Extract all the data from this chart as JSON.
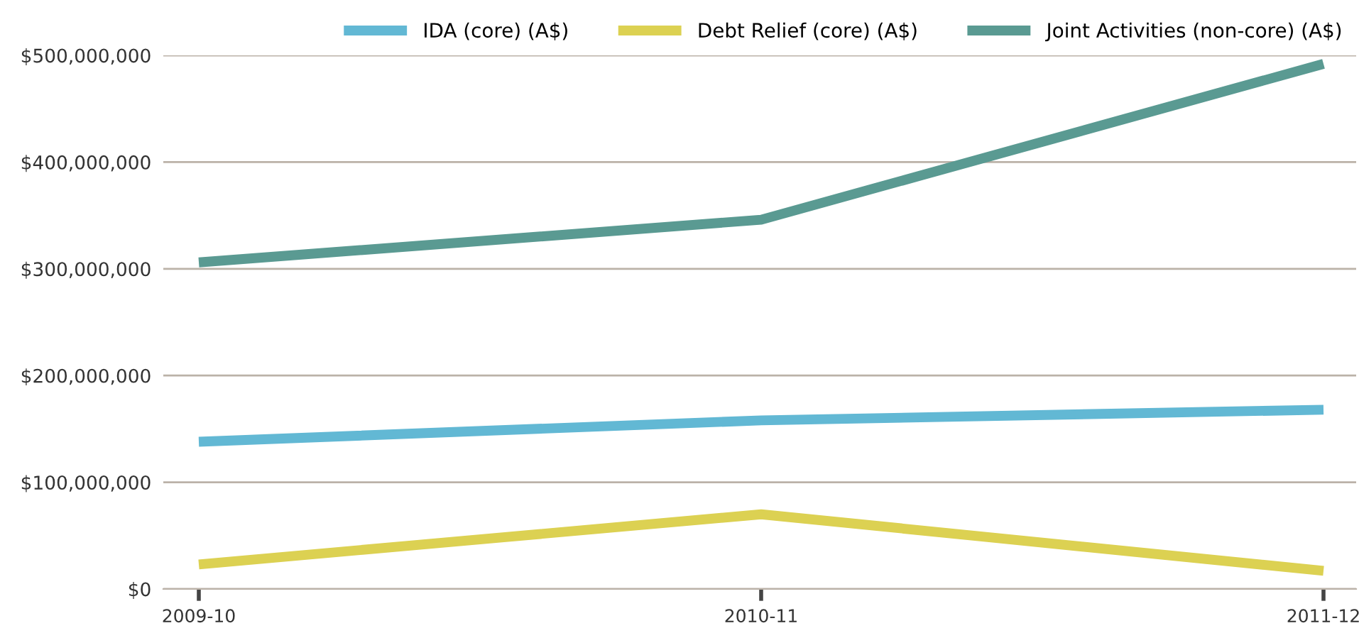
{
  "chart_data": {
    "type": "line",
    "categories": [
      "2009-10",
      "2010-11",
      "2011-12"
    ],
    "series": [
      {
        "name": "IDA (core) (A$)",
        "color": "#62b8d4",
        "values": [
          138000000,
          158000000,
          168000000
        ]
      },
      {
        "name": "Debt Relief (core) (A$)",
        "color": "#dcd152",
        "values": [
          23000000,
          70000000,
          17000000
        ]
      },
      {
        "name": "Joint Activities (non-core) (A$)",
        "color": "#5a9a92",
        "values": [
          306000000,
          346000000,
          492000000
        ]
      }
    ],
    "ylim": [
      0,
      500000000
    ],
    "yticks": [
      {
        "value": 0,
        "label": "$0"
      },
      {
        "value": 100000000,
        "label": "$100,000,000"
      },
      {
        "value": 200000000,
        "label": "$200,000,000"
      },
      {
        "value": 300000000,
        "label": "$300,000,000"
      },
      {
        "value": 400000000,
        "label": "$400,000,000"
      },
      {
        "value": 500000000,
        "label": "$500,000,000"
      }
    ],
    "grid": "y",
    "legend": "top right",
    "marker": "none",
    "line_style": "solid"
  }
}
